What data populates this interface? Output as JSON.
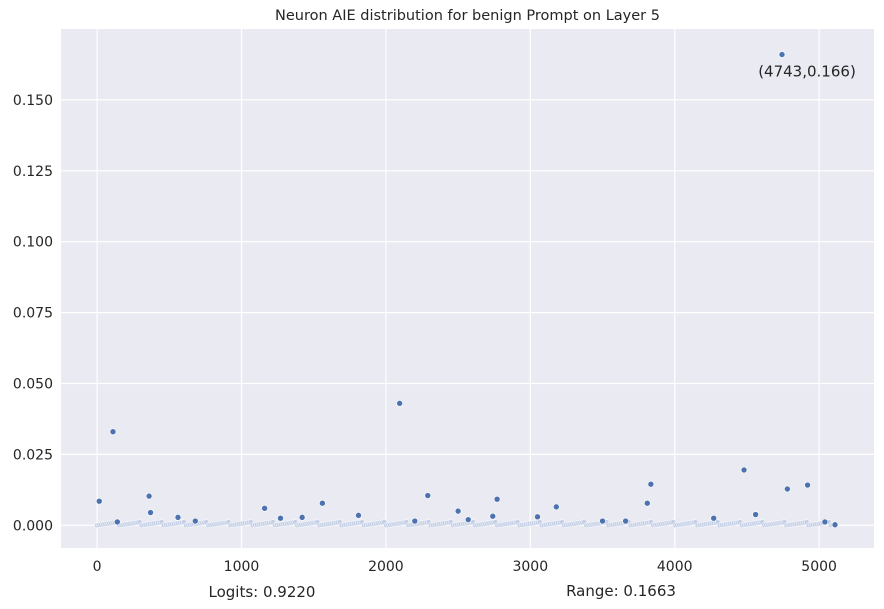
{
  "chart_data": {
    "type": "scatter",
    "title": "Neuron AIE distribution for benign Prompt on Layer 5",
    "xlabel": "",
    "ylabel": "",
    "xlim": [
      -250,
      5380
    ],
    "ylim": [
      -0.008,
      0.175
    ],
    "xticks": [
      0,
      1000,
      2000,
      3000,
      4000,
      5000
    ],
    "xtick_labels": [
      "0",
      "1000",
      "2000",
      "3000",
      "4000",
      "5000"
    ],
    "yticks": [
      0.0,
      0.025,
      0.05,
      0.075,
      0.1,
      0.125,
      0.15
    ],
    "ytick_labels": [
      "0.000",
      "0.025",
      "0.050",
      "0.075",
      "0.100",
      "0.125",
      "0.150"
    ],
    "grid": true,
    "background": "#eaeaf2",
    "point_color": "#4c72b0",
    "baseline_range": [
      0,
      5110
    ],
    "points": [
      [
        15,
        0.0085
      ],
      [
        110,
        0.033
      ],
      [
        140,
        0.0012
      ],
      [
        360,
        0.0103
      ],
      [
        370,
        0.0045
      ],
      [
        560,
        0.0028
      ],
      [
        680,
        0.0015
      ],
      [
        1160,
        0.006
      ],
      [
        1270,
        0.0025
      ],
      [
        1420,
        0.0028
      ],
      [
        1560,
        0.0078
      ],
      [
        1810,
        0.0035
      ],
      [
        2095,
        0.043
      ],
      [
        2200,
        0.0015
      ],
      [
        2290,
        0.0105
      ],
      [
        2500,
        0.005
      ],
      [
        2570,
        0.002
      ],
      [
        2740,
        0.0032
      ],
      [
        2770,
        0.0092
      ],
      [
        3050,
        0.003
      ],
      [
        3180,
        0.0065
      ],
      [
        3500,
        0.0015
      ],
      [
        3660,
        0.0015
      ],
      [
        3810,
        0.0078
      ],
      [
        3835,
        0.0145
      ],
      [
        4270,
        0.0025
      ],
      [
        4480,
        0.0195
      ],
      [
        4560,
        0.0038
      ],
      [
        4743,
        0.166
      ],
      [
        4780,
        0.0128
      ],
      [
        4920,
        0.0142
      ],
      [
        5040,
        0.0012
      ],
      [
        5110,
        0.0002
      ]
    ],
    "annotation": {
      "text": "(4743,0.166)",
      "x": 4743,
      "y": 0.166
    }
  },
  "footer": {
    "logits": "Logits: 0.9220",
    "range": "Range: 0.1663"
  }
}
